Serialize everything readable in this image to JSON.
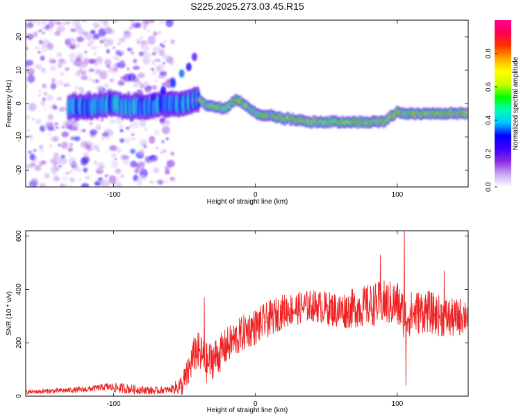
{
  "title": "S225.2025.273.03.45.R15",
  "chart_data": [
    {
      "type": "heatmap",
      "description_free": true,
      "xlabel": "Height of straight line (km)",
      "ylabel": "Frequency (Hz)",
      "xlim": [
        -162,
        150
      ],
      "ylim": [
        -25,
        25
      ],
      "x_ticks": [
        -100,
        0,
        100
      ],
      "y_ticks": [
        -20,
        -10,
        0,
        10,
        20
      ],
      "colorbar": {
        "label": "Normalized spectral amplitude",
        "range": [
          0,
          1
        ],
        "ticks": [
          "0.0",
          "0.2",
          "0.4",
          "0.6",
          "0.8"
        ],
        "colors": [
          "#ffffff",
          "#c9a7f2",
          "#8a2be2",
          "#3c00ff",
          "#0000ff",
          "#00c8ff",
          "#00ffb4",
          "#00ff00",
          "#c8ff00",
          "#ffff00",
          "#ffaa00",
          "#ff3200",
          "#ff0050",
          "#ff0090"
        ]
      },
      "ridge": {
        "x": [
          -130,
          -115,
          -100,
          -90,
          -80,
          -70,
          -60,
          -50,
          -42,
          -38,
          -34,
          -30,
          -26,
          -22,
          -18,
          -14,
          -10,
          -6,
          0,
          10,
          20,
          30,
          40,
          50,
          60,
          70,
          80,
          90,
          95,
          100,
          105,
          110,
          120,
          130,
          140,
          150
        ],
        "y": [
          -1,
          -1,
          0,
          -1,
          -1,
          -0.5,
          0,
          0,
          1.5,
          0.5,
          -0.5,
          -1,
          -1,
          -1.5,
          -0.5,
          1,
          0.5,
          -1,
          -3,
          -3.5,
          -4.5,
          -5,
          -5.5,
          -5.5,
          -5.5,
          -5.5,
          -5.5,
          -5.5,
          -4,
          -2.5,
          -3,
          -3,
          -3,
          -3,
          -3,
          -3
        ]
      },
      "scatter_ridge": {
        "x": [
          -72,
          -65,
          -58,
          -52,
          -47,
          -43
        ],
        "y": [
          2,
          4,
          6,
          9,
          11,
          14
        ]
      }
    },
    {
      "type": "line",
      "xlabel": "Height of straight line (km)",
      "ylabel": "SNR (10 * v/v)",
      "xlim": [
        -162,
        150
      ],
      "ylim": [
        0,
        620
      ],
      "x_ticks": [
        -100,
        0,
        100
      ],
      "y_ticks": [
        0,
        200,
        400,
        600
      ],
      "color": "#ee2222",
      "trend": {
        "x": [
          -162,
          -140,
          -120,
          -105,
          -95,
          -85,
          -70,
          -60,
          -52,
          -48,
          -45,
          -42,
          -38,
          -34,
          -30,
          -25,
          -20,
          -15,
          -10,
          -5,
          0,
          5,
          10,
          20,
          30,
          40,
          50,
          60,
          70,
          80,
          90,
          100,
          105,
          110,
          120,
          130,
          140,
          150
        ],
        "y": [
          15,
          20,
          25,
          35,
          30,
          25,
          20,
          25,
          40,
          80,
          130,
          170,
          150,
          120,
          140,
          160,
          190,
          210,
          230,
          250,
          260,
          275,
          290,
          320,
          330,
          340,
          330,
          320,
          330,
          340,
          350,
          345,
          300,
          310,
          320,
          300,
          290,
          310
        ]
      },
      "noise_amplitude": {
        "x": [
          -162,
          -110,
          -95,
          -60,
          -48,
          -40,
          -20,
          0,
          40,
          100,
          150
        ],
        "y": [
          8,
          12,
          20,
          12,
          60,
          80,
          70,
          70,
          60,
          90,
          70
        ]
      },
      "spikes": [
        {
          "x": 105,
          "y": 620
        },
        {
          "x": 106,
          "y": 40
        },
        {
          "x": -36,
          "y": 370
        },
        {
          "x": 88,
          "y": 530
        },
        {
          "x": 133,
          "y": 470
        }
      ]
    }
  ]
}
